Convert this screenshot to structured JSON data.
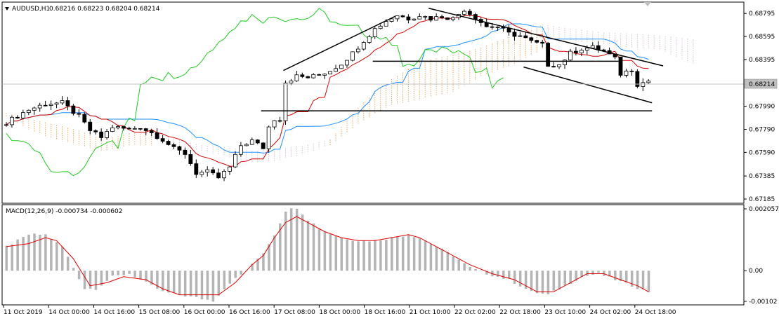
{
  "header": {
    "symbol": "AUDUSD,H1",
    "ohlc": "0.68216 0.68223 0.68204 0.68214",
    "indicator": "MACD(12,26,9) -0.000734 -0.000602"
  },
  "colors": {
    "candle": "#000000",
    "tenkan": "#d40000",
    "kijun": "#1e90ff",
    "chikou": "#22cc22",
    "cloud_up": "#f4a460",
    "cloud_down": "#d8bfd8",
    "macd_hist": "#b4b4b4",
    "macd_signal": "#e00000",
    "trendline": "#000000"
  },
  "chart_data": [
    {
      "type": "candlestick",
      "title": "AUDUSD,H1",
      "ylim": [
        0.67185,
        0.68875
      ],
      "price_ticks": [
        "0.68795",
        "0.68595",
        "0.68395",
        "0.67990",
        "0.67790",
        "0.67590",
        "0.67385",
        "0.67185"
      ],
      "current_price": "0.68214",
      "x_ticks": [
        "11 Oct 2019",
        "14 Oct 00:00",
        "14 Oct 16:00",
        "15 Oct 08:00",
        "16 Oct 00:00",
        "16 Oct 16:00",
        "17 Oct 08:00",
        "18 Oct 00:00",
        "18 Oct 16:00",
        "21 Oct 10:00",
        "22 Oct 02:00",
        "22 Oct 18:00",
        "23 Oct 10:00",
        "24 Oct 02:00",
        "24 Oct 18:00"
      ],
      "close_path": [
        [
          0,
          0.6785
        ],
        [
          4,
          0.6796
        ],
        [
          7,
          0.6801
        ],
        [
          10,
          0.6802
        ],
        [
          13,
          0.679
        ],
        [
          15,
          0.6778
        ],
        [
          17,
          0.6772
        ],
        [
          19,
          0.6781
        ],
        [
          22,
          0.6779
        ],
        [
          24,
          0.6781
        ],
        [
          26,
          0.6776
        ],
        [
          28,
          0.677
        ],
        [
          30,
          0.6762
        ],
        [
          32,
          0.6758
        ],
        [
          34,
          0.6741
        ],
        [
          36,
          0.6742
        ],
        [
          38,
          0.6737
        ],
        [
          40,
          0.6746
        ],
        [
          42,
          0.6765
        ],
        [
          44,
          0.6769
        ],
        [
          46,
          0.6763
        ],
        [
          47,
          0.6781
        ],
        [
          48,
          0.6788
        ],
        [
          49,
          0.6788
        ],
        [
          50,
          0.682
        ],
        [
          52,
          0.6825
        ],
        [
          54,
          0.6824
        ],
        [
          56,
          0.6826
        ],
        [
          58,
          0.683
        ],
        [
          60,
          0.6836
        ],
        [
          62,
          0.6845
        ],
        [
          64,
          0.6856
        ],
        [
          66,
          0.6866
        ],
        [
          68,
          0.6873
        ],
        [
          70,
          0.6878
        ],
        [
          72,
          0.6875
        ],
        [
          74,
          0.6878
        ],
        [
          76,
          0.6875
        ],
        [
          78,
          0.6877
        ],
        [
          80,
          0.6875
        ],
        [
          82,
          0.6883
        ],
        [
          84,
          0.6876
        ],
        [
          86,
          0.6868
        ],
        [
          88,
          0.6868
        ],
        [
          90,
          0.6862
        ],
        [
          92,
          0.686
        ],
        [
          94,
          0.6855
        ],
        [
          96,
          0.6852
        ],
        [
          97,
          0.6835
        ],
        [
          99,
          0.6835
        ],
        [
          101,
          0.6845
        ],
        [
          103,
          0.6849
        ],
        [
          105,
          0.685
        ],
        [
          107,
          0.6847
        ],
        [
          109,
          0.684
        ],
        [
          110,
          0.6827
        ],
        [
          112,
          0.6831
        ],
        [
          113,
          0.6818
        ],
        [
          115,
          0.6821
        ]
      ],
      "cloud_segments": [
        {
          "kind": "up",
          "from": 0,
          "to": 26,
          "a": [
            0.6793,
            0.6788,
            0.6783,
            0.6778,
            0.677,
            0.6775,
            0.6778
          ],
          "b": [
            0.679,
            0.6778,
            0.677,
            0.6765,
            0.676,
            0.6765,
            0.6765
          ]
        },
        {
          "kind": "down",
          "from": 26,
          "to": 58,
          "a": [
            0.6778,
            0.677,
            0.6765,
            0.6763,
            0.676,
            0.6762,
            0.6765,
            0.677
          ],
          "b": [
            0.6775,
            0.6765,
            0.676,
            0.6755,
            0.675,
            0.6752,
            0.6758,
            0.6765
          ]
        },
        {
          "kind": "up",
          "from": 58,
          "to": 96,
          "a": [
            0.677,
            0.68,
            0.6822,
            0.6838,
            0.6843,
            0.685,
            0.686,
            0.6868
          ],
          "b": [
            0.6765,
            0.6785,
            0.68,
            0.6805,
            0.681,
            0.6825,
            0.6835,
            0.6848
          ]
        },
        {
          "kind": "down",
          "from": 96,
          "to": 123,
          "a": [
            0.687,
            0.6866,
            0.6863,
            0.6862,
            0.686,
            0.6857
          ],
          "b": [
            0.686,
            0.6855,
            0.6852,
            0.685,
            0.6847,
            0.6835
          ]
        }
      ],
      "trendlines": [
        [
          [
            50,
            0.683
          ],
          [
            70,
            0.6877
          ]
        ],
        [
          [
            76,
            0.6884
          ],
          [
            118,
            0.6834
          ]
        ],
        [
          [
            66,
            0.6838
          ],
          [
            110,
            0.6838
          ]
        ],
        [
          [
            93,
            0.6833
          ],
          [
            116,
            0.6802
          ]
        ],
        [
          [
            46,
            0.6795
          ],
          [
            116,
            0.6795
          ]
        ]
      ]
    },
    {
      "type": "bar",
      "title": "MACD(12,26,9) -0.000734 -0.000602",
      "ylim": [
        -0.00102,
        0.002057
      ],
      "y_ticks": [
        "0.002057",
        "0.00",
        "-0.00102"
      ],
      "histogram_path": [
        [
          0,
          0.0008
        ],
        [
          4,
          0.0012
        ],
        [
          7,
          0.0012
        ],
        [
          10,
          0.0008
        ],
        [
          12,
          0.0001
        ],
        [
          14,
          -0.0006
        ],
        [
          16,
          -0.0006
        ],
        [
          19,
          -0.0002
        ],
        [
          22,
          -0.0001
        ],
        [
          25,
          -0.0004
        ],
        [
          28,
          -0.0007
        ],
        [
          31,
          -0.0008
        ],
        [
          34,
          -0.0009
        ],
        [
          37,
          -0.001
        ],
        [
          40,
          -0.0004
        ],
        [
          43,
          0.0
        ],
        [
          46,
          0.0006
        ],
        [
          48,
          0.0012
        ],
        [
          50,
          0.002
        ],
        [
          52,
          0.0021
        ],
        [
          54,
          0.0017
        ],
        [
          57,
          0.0013
        ],
        [
          60,
          0.0011
        ],
        [
          63,
          0.001
        ],
        [
          66,
          0.001
        ],
        [
          69,
          0.0011
        ],
        [
          72,
          0.0012
        ],
        [
          74,
          0.0011
        ],
        [
          77,
          0.0008
        ],
        [
          80,
          0.0005
        ],
        [
          83,
          0.0001
        ],
        [
          86,
          -0.0001
        ],
        [
          90,
          -0.0003
        ],
        [
          94,
          -0.0007
        ],
        [
          97,
          -0.0008
        ],
        [
          100,
          -0.0005
        ],
        [
          103,
          -0.0002
        ],
        [
          106,
          -0.0001
        ],
        [
          109,
          -0.0003
        ],
        [
          112,
          -0.0005
        ],
        [
          115,
          -0.0007
        ]
      ],
      "signal_path": [
        [
          0,
          0.0008
        ],
        [
          4,
          0.0009
        ],
        [
          7,
          0.0011
        ],
        [
          9,
          0.001
        ],
        [
          12,
          0.0004
        ],
        [
          15,
          -0.0005
        ],
        [
          18,
          -0.0004
        ],
        [
          21,
          -0.0002
        ],
        [
          25,
          -0.0003
        ],
        [
          28,
          -0.0006
        ],
        [
          31,
          -0.0008
        ],
        [
          34,
          -0.0008
        ],
        [
          38,
          -0.0008
        ],
        [
          41,
          -0.0004
        ],
        [
          44,
          0.0002
        ],
        [
          46,
          0.0005
        ],
        [
          48,
          0.0011
        ],
        [
          50,
          0.0016
        ],
        [
          52,
          0.0018
        ],
        [
          54,
          0.0016
        ],
        [
          57,
          0.0013
        ],
        [
          60,
          0.0011
        ],
        [
          63,
          0.001
        ],
        [
          66,
          0.001
        ],
        [
          69,
          0.0011
        ],
        [
          72,
          0.0012
        ],
        [
          74,
          0.0011
        ],
        [
          77,
          0.0008
        ],
        [
          80,
          0.0005
        ],
        [
          83,
          0.0002
        ],
        [
          87,
          -0.0001
        ],
        [
          91,
          -0.0003
        ],
        [
          95,
          -0.0007
        ],
        [
          98,
          -0.0007
        ],
        [
          101,
          -0.0004
        ],
        [
          104,
          -0.0001
        ],
        [
          107,
          -0.0001
        ],
        [
          110,
          -0.0003
        ],
        [
          113,
          -0.0005
        ],
        [
          115,
          -0.0007
        ]
      ]
    }
  ]
}
